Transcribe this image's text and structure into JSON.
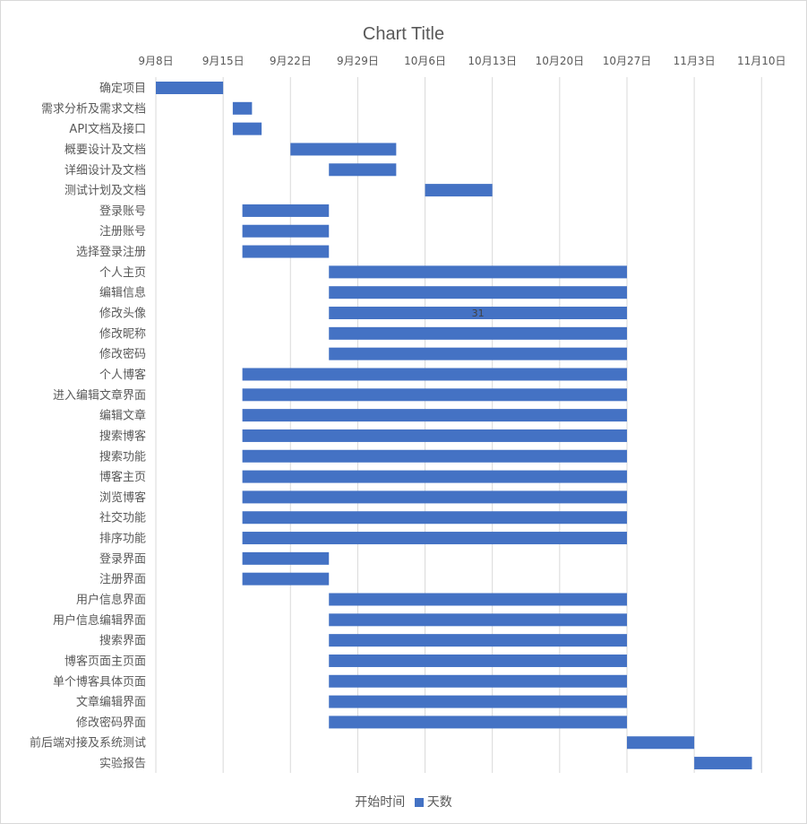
{
  "chart_data": {
    "type": "bar",
    "orientation": "horizontal",
    "stacked": true,
    "title": "Chart Title",
    "x_axis": {
      "position": "top",
      "min": "2019-09-08",
      "max": "2019-11-11",
      "tick_step_days": 7,
      "tick_labels": [
        "9月8日",
        "9月15日",
        "9月22日",
        "9月29日",
        "10月6日",
        "10月13日",
        "10月20日",
        "10月27日",
        "11月3日",
        "11月10日"
      ]
    },
    "grid": true,
    "legend": {
      "position": "bottom",
      "entries": [
        {
          "name": "开始时间",
          "color": "none"
        },
        {
          "name": "天数",
          "color": "#4472c4"
        }
      ]
    },
    "series": [
      {
        "name": "开始时间",
        "visible": false,
        "color": "none"
      },
      {
        "name": "天数",
        "visible": true,
        "color": "#4472c4"
      }
    ],
    "tasks": [
      {
        "name": "确定项目",
        "start": "2019-09-08",
        "days": 7
      },
      {
        "name": "需求分析及需求文档",
        "start": "2019-09-16",
        "days": 2
      },
      {
        "name": "API文档及接口",
        "start": "2019-09-16",
        "days": 3
      },
      {
        "name": "概要设计及文档",
        "start": "2019-09-22",
        "days": 11
      },
      {
        "name": "详细设计及文档",
        "start": "2019-09-26",
        "days": 7
      },
      {
        "name": "测试计划及文档",
        "start": "2019-10-06",
        "days": 7
      },
      {
        "name": "登录账号",
        "start": "2019-09-17",
        "days": 9
      },
      {
        "name": "注册账号",
        "start": "2019-09-17",
        "days": 9
      },
      {
        "name": "选择登录注册",
        "start": "2019-09-17",
        "days": 9
      },
      {
        "name": "个人主页",
        "start": "2019-09-26",
        "days": 31
      },
      {
        "name": "编辑信息",
        "start": "2019-09-26",
        "days": 31
      },
      {
        "name": "修改头像",
        "start": "2019-09-26",
        "days": 31,
        "data_label": "31"
      },
      {
        "name": "修改昵称",
        "start": "2019-09-26",
        "days": 31
      },
      {
        "name": "修改密码",
        "start": "2019-09-26",
        "days": 31
      },
      {
        "name": "个人博客",
        "start": "2019-09-17",
        "days": 40
      },
      {
        "name": "进入编辑文章界面",
        "start": "2019-09-17",
        "days": 40
      },
      {
        "name": "编辑文章",
        "start": "2019-09-17",
        "days": 40
      },
      {
        "name": "搜索博客",
        "start": "2019-09-17",
        "days": 40
      },
      {
        "name": "搜索功能",
        "start": "2019-09-17",
        "days": 40
      },
      {
        "name": "博客主页",
        "start": "2019-09-17",
        "days": 40
      },
      {
        "name": "浏览博客",
        "start": "2019-09-17",
        "days": 40
      },
      {
        "name": "社交功能",
        "start": "2019-09-17",
        "days": 40
      },
      {
        "name": "排序功能",
        "start": "2019-09-17",
        "days": 40
      },
      {
        "name": "登录界面",
        "start": "2019-09-17",
        "days": 9
      },
      {
        "name": "注册界面",
        "start": "2019-09-17",
        "days": 9
      },
      {
        "name": "用户信息界面",
        "start": "2019-09-26",
        "days": 31
      },
      {
        "name": "用户信息编辑界面",
        "start": "2019-09-26",
        "days": 31
      },
      {
        "name": "搜索界面",
        "start": "2019-09-26",
        "days": 31
      },
      {
        "name": "博客页面主页面",
        "start": "2019-09-26",
        "days": 31
      },
      {
        "name": "单个博客具体页面",
        "start": "2019-09-26",
        "days": 31
      },
      {
        "name": "文章编辑界面",
        "start": "2019-09-26",
        "days": 31
      },
      {
        "name": "修改密码界面",
        "start": "2019-09-26",
        "days": 31
      },
      {
        "name": "前后端对接及系统测试",
        "start": "2019-10-27",
        "days": 7
      },
      {
        "name": "实验报告",
        "start": "2019-11-03",
        "days": 6
      }
    ]
  }
}
